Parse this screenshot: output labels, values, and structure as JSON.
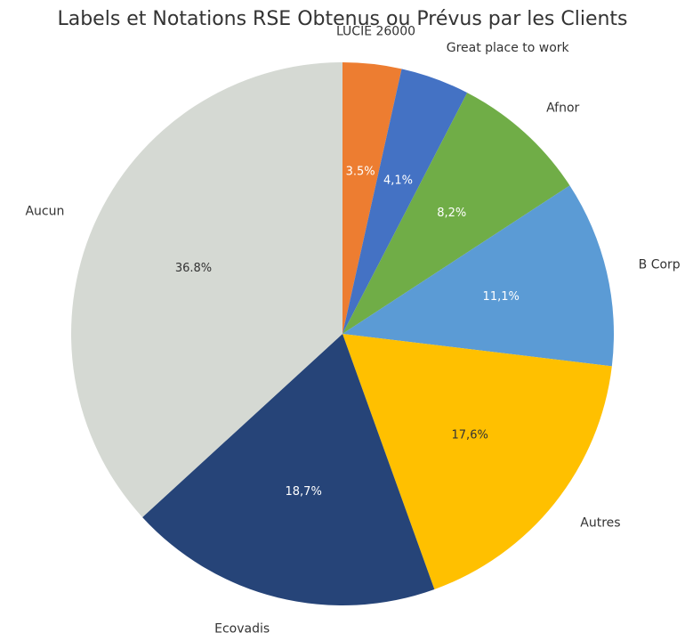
{
  "chart_data": {
    "type": "pie",
    "title": "Labels et Notations RSE Obtenus ou Prévus par les Clients",
    "categories": [
      "LUCIE 26000",
      "Great place to work",
      "Afnor",
      "B Corp",
      "Autres",
      "Ecovadis",
      "Aucun"
    ],
    "values": [
      3.5,
      4.1,
      8.2,
      11.1,
      17.6,
      18.7,
      36.8
    ],
    "value_labels": [
      "3.5%",
      "4,1%",
      "8,2%",
      "11,1%",
      "17,6%",
      "18,7%",
      "36.8%"
    ],
    "colors": [
      "#ed7d31",
      "#4472c4",
      "#70ad47",
      "#5b9bd5",
      "#ffc000",
      "#264478",
      "#d5d9d3"
    ]
  }
}
